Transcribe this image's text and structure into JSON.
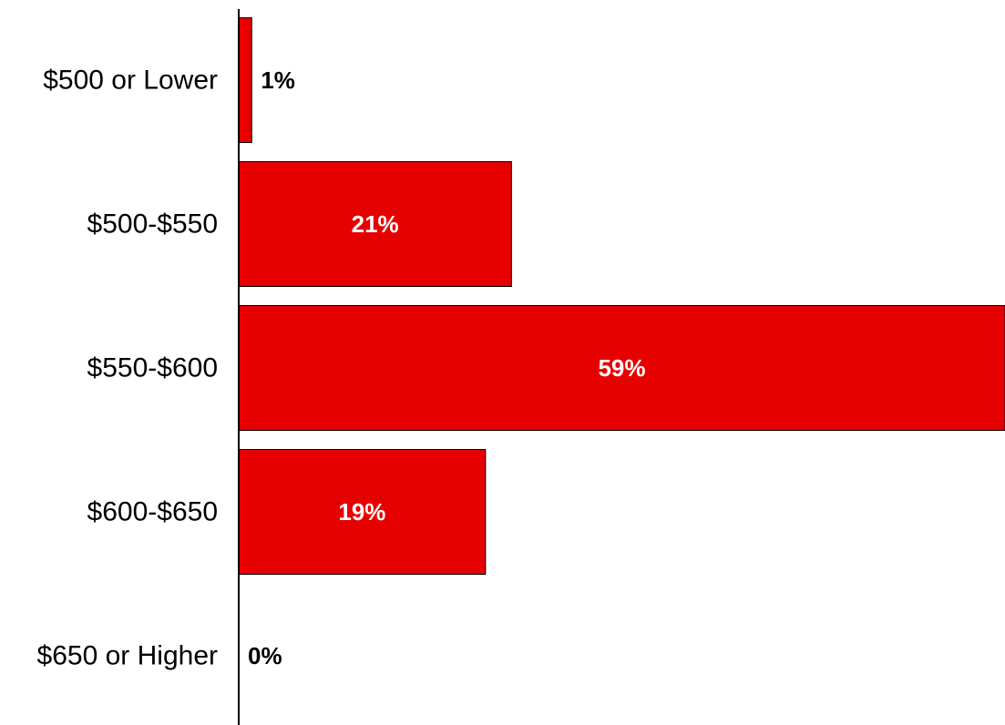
{
  "chart_data": {
    "type": "bar",
    "orientation": "horizontal",
    "categories": [
      "$500 or Lower",
      "$500-$550",
      "$550-$600",
      "$600-$650",
      "$650 or Higher"
    ],
    "values": [
      1,
      21,
      59,
      19,
      0
    ],
    "value_labels": [
      "1%",
      "21%",
      "59%",
      "19%",
      "0%"
    ],
    "unit": "%",
    "xlim": [
      0,
      59
    ],
    "grid": false,
    "legend": "none",
    "bar_color": "#E60000",
    "bar_stroke": "#000000",
    "inside_label_color": "#FFFFFF",
    "outside_label_color": "#000000",
    "title": "",
    "xlabel": "",
    "ylabel": ""
  }
}
